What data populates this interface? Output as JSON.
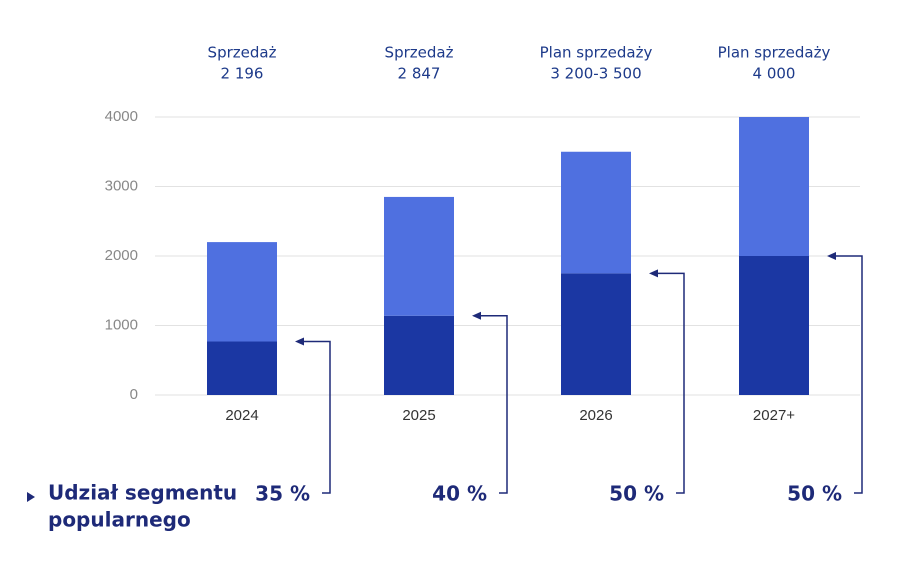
{
  "chart_data": {
    "type": "bar",
    "stacked": true,
    "categories": [
      "2024",
      "2025",
      "2026",
      "2027+"
    ],
    "series": [
      {
        "color": "#1b37a3",
        "values": [
          770,
          1140,
          1750,
          2000
        ]
      },
      {
        "color": "#4f70e0",
        "values": [
          1430,
          1710,
          1750,
          2000
        ]
      }
    ],
    "ylim": [
      0,
      4000
    ],
    "yticks": [
      0,
      1000,
      2000,
      3000,
      4000
    ],
    "grid": true,
    "top_labels": [
      {
        "title": "Sprzedaż",
        "value": "2 196"
      },
      {
        "title": "Sprzedaż",
        "value": "2 847"
      },
      {
        "title": "Plan sprzedaży",
        "value": "3 200-3 500"
      },
      {
        "title": "Plan sprzedaży",
        "value": "4 000"
      }
    ],
    "share_title": [
      "Udział segmentu",
      "popularnego"
    ],
    "share_labels": [
      "35 %",
      "40 %",
      "50 %",
      "50 %"
    ]
  }
}
